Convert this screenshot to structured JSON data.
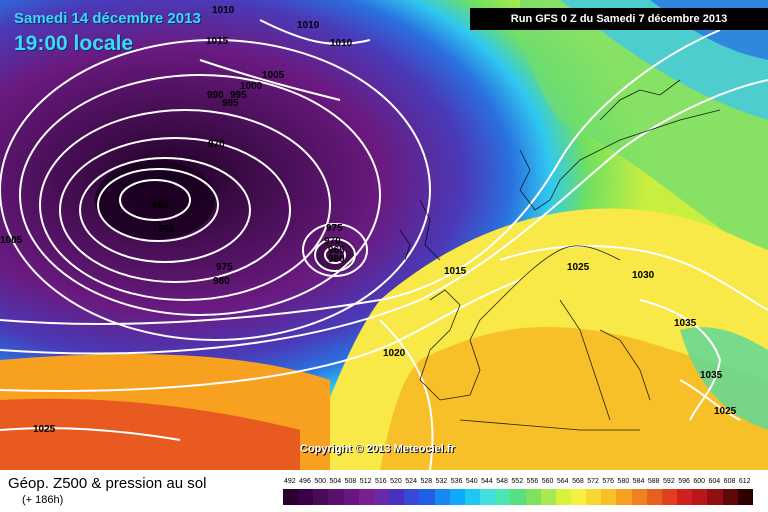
{
  "header": {
    "date": "Samedi 14 décembre 2013",
    "time": "19:00 locale",
    "run": "Run GFS 0 Z du Samedi 7 décembre 2013"
  },
  "copyright": "Copyright © 2013 Meteociel.fr",
  "legend": {
    "title": "Géop. Z500 & pression au sol",
    "subtitle": "(+ 186h)",
    "scale_values": [
      "492",
      "496",
      "500",
      "504",
      "508",
      "512",
      "516",
      "520",
      "524",
      "528",
      "532",
      "536",
      "540",
      "544",
      "548",
      "552",
      "556",
      "560",
      "564",
      "568",
      "572",
      "576",
      "580",
      "584",
      "588",
      "592",
      "596",
      "600",
      "604",
      "608",
      "612"
    ],
    "scale_colors": [
      "#2a0030",
      "#3a0048",
      "#4a0a5a",
      "#5a106c",
      "#6a1680",
      "#7a1e92",
      "#6a2aa8",
      "#4a30c0",
      "#3848d8",
      "#2060e8",
      "#1888f0",
      "#10a8f8",
      "#20c8f0",
      "#40e0e0",
      "#48e8b0",
      "#58e080",
      "#80e060",
      "#a8e850",
      "#d8f040",
      "#f8f040",
      "#f8d830",
      "#f8c028",
      "#f8a020",
      "#f08020",
      "#e86020",
      "#e04020",
      "#d02020",
      "#b81818",
      "#901010",
      "#600808",
      "#300000"
    ]
  },
  "isobar_labels": [
    "1010",
    "1015",
    "1010",
    "1010",
    "1005",
    "1000",
    "995",
    "990",
    "985",
    "970",
    "960",
    "965",
    "975",
    "980",
    "975",
    "970",
    "965",
    "960",
    "1005",
    "1015",
    "1025",
    "1030",
    "1035",
    "1035",
    "1025",
    "1020",
    "1025"
  ],
  "colors": {
    "deep_low": "#3a0a44",
    "purple": "#6a2a8a",
    "blue": "#2a6ae0",
    "cyan": "#30d0f0",
    "green": "#70e050",
    "yellow": "#f8e840",
    "orange": "#f8b028",
    "red": "#e04020",
    "isobar": "#ffffff"
  }
}
